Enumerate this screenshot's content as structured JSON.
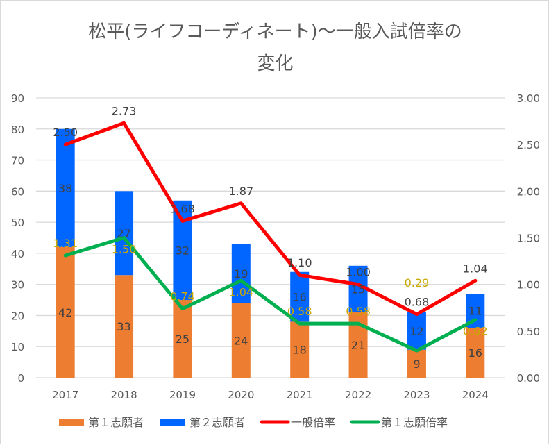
{
  "chart_data": {
    "type": "bar+line",
    "title_line1": "松平(ライフコーディネート)〜一般入試倍率の",
    "title_line2": "変化",
    "categories": [
      "2017",
      "2018",
      "2019",
      "2020",
      "2021",
      "2022",
      "2023",
      "2024"
    ],
    "left_axis": {
      "range": [
        0,
        90
      ],
      "ticks": [
        "0",
        "10",
        "20",
        "30",
        "40",
        "50",
        "60",
        "70",
        "80",
        "90"
      ]
    },
    "right_axis": {
      "range": [
        0,
        3
      ],
      "ticks": [
        "0.00",
        "0.50",
        "1.00",
        "1.50",
        "2.00",
        "2.50",
        "3.00"
      ]
    },
    "grid": true,
    "legend_position": "bottom",
    "series": [
      {
        "name": "第１志願者",
        "kind": "stacked-bar",
        "axis": "left",
        "color": "#ED7D31",
        "values": [
          42,
          33,
          25,
          24,
          18,
          21,
          9,
          16
        ]
      },
      {
        "name": "第２志願者",
        "kind": "stacked-bar",
        "axis": "left",
        "color": "#0066FF",
        "values": [
          38,
          27,
          32,
          19,
          16,
          15,
          12,
          11
        ]
      },
      {
        "name": "一般倍率",
        "kind": "line",
        "axis": "right",
        "color": "#FF0000",
        "values": [
          2.5,
          2.73,
          1.68,
          1.87,
          1.1,
          1.0,
          0.68,
          1.04
        ],
        "labels": [
          "2.50",
          "2.73",
          "1.68",
          "1.87",
          "1.10",
          "1.00",
          "0.68",
          "1.04"
        ]
      },
      {
        "name": "第１志願倍率",
        "kind": "line",
        "axis": "right",
        "color": "#00B050",
        "values": [
          1.31,
          1.5,
          0.74,
          1.04,
          0.58,
          0.58,
          0.29,
          0.62
        ],
        "labels": [
          "1.31",
          "1.50",
          "0.74",
          "1.04",
          "0.58",
          "0.58",
          "0.29",
          "0.62"
        ]
      }
    ]
  }
}
